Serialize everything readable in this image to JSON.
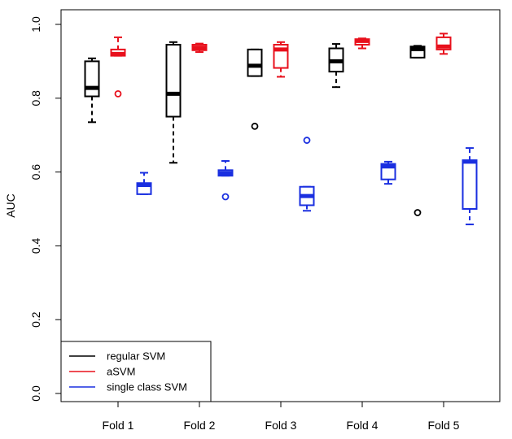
{
  "chart_data": {
    "type": "box",
    "title": "",
    "xlabel": "",
    "ylabel": "AUC",
    "ylim": [
      0,
      1.0
    ],
    "yticks": [
      "0.0",
      "0.2",
      "0.4",
      "0.6",
      "0.8",
      "1.0"
    ],
    "categories": [
      "Fold 1",
      "Fold 2",
      "Fold 3",
      "Fold 4",
      "Fold 5"
    ],
    "grid": false,
    "legend_position": "bottom-left",
    "series": [
      {
        "name": "regular SVM",
        "color": "#000000",
        "boxes": [
          {
            "min": 0.735,
            "q1": 0.805,
            "median": 0.828,
            "q3": 0.9,
            "max": 0.908,
            "outliers": []
          },
          {
            "min": 0.625,
            "q1": 0.75,
            "median": 0.812,
            "q3": 0.945,
            "max": 0.952,
            "outliers": []
          },
          {
            "min": 0.86,
            "q1": 0.86,
            "median": 0.888,
            "q3": 0.932,
            "max": 0.932,
            "outliers": [
              0.724
            ]
          },
          {
            "min": 0.83,
            "q1": 0.872,
            "median": 0.9,
            "q3": 0.935,
            "max": 0.947,
            "outliers": []
          },
          {
            "min": 0.91,
            "q1": 0.91,
            "median": 0.933,
            "q3": 0.94,
            "max": 0.942,
            "outliers": [
              0.49
            ]
          }
        ]
      },
      {
        "name": "aSVM",
        "color": "#e8101c",
        "boxes": [
          {
            "min": 0.915,
            "q1": 0.915,
            "median": 0.92,
            "q3": 0.932,
            "max": 0.965,
            "outliers": [
              0.812
            ]
          },
          {
            "min": 0.925,
            "q1": 0.93,
            "median": 0.937,
            "q3": 0.945,
            "max": 0.948,
            "outliers": []
          },
          {
            "min": 0.858,
            "q1": 0.882,
            "median": 0.932,
            "q3": 0.945,
            "max": 0.952,
            "outliers": []
          },
          {
            "min": 0.935,
            "q1": 0.945,
            "median": 0.955,
            "q3": 0.96,
            "max": 0.962,
            "outliers": []
          },
          {
            "min": 0.92,
            "q1": 0.932,
            "median": 0.94,
            "q3": 0.965,
            "max": 0.975,
            "outliers": []
          }
        ]
      },
      {
        "name": "single class SVM",
        "color": "#1a2fe0",
        "boxes": [
          {
            "min": 0.54,
            "q1": 0.54,
            "median": 0.565,
            "q3": 0.57,
            "max": 0.598,
            "outliers": []
          },
          {
            "min": 0.59,
            "q1": 0.59,
            "median": 0.597,
            "q3": 0.605,
            "max": 0.63,
            "outliers": [
              0.533
            ]
          },
          {
            "min": 0.495,
            "q1": 0.51,
            "median": 0.535,
            "q3": 0.56,
            "max": 0.56,
            "outliers": [
              0.686
            ]
          },
          {
            "min": 0.568,
            "q1": 0.58,
            "median": 0.615,
            "q3": 0.622,
            "max": 0.628,
            "outliers": []
          },
          {
            "min": 0.458,
            "q1": 0.5,
            "median": 0.628,
            "q3": 0.632,
            "max": 0.665,
            "outliers": []
          }
        ]
      }
    ]
  }
}
